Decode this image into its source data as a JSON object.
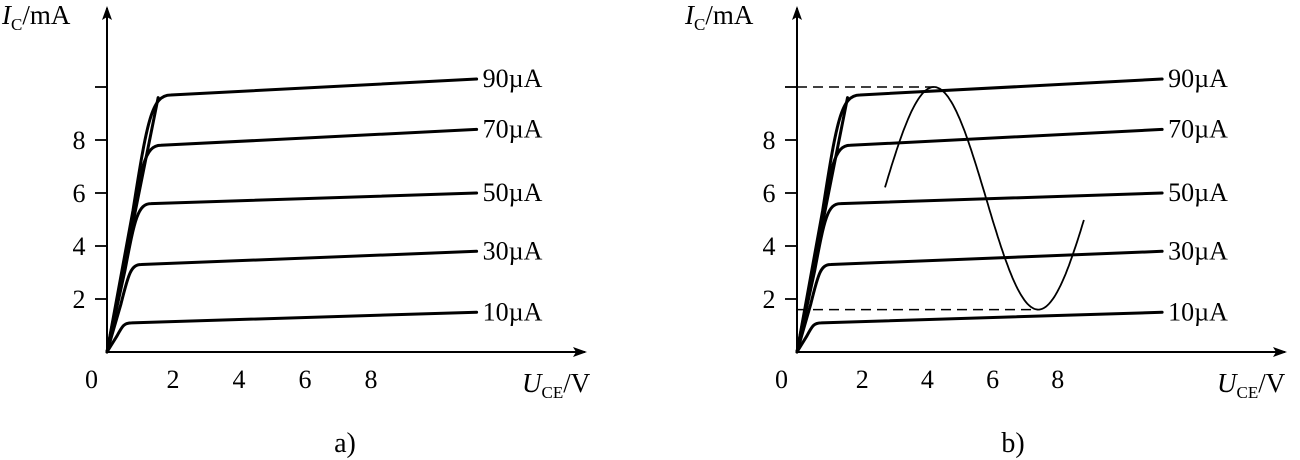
{
  "panels": [
    {
      "id": "a",
      "caption": "a)",
      "y_axis": {
        "symbol": "I",
        "subscript": "C",
        "unit": "/mA",
        "ticks": [
          {
            "value": 2,
            "label": "2"
          },
          {
            "value": 4,
            "label": "4"
          },
          {
            "value": 6,
            "label": "6"
          },
          {
            "value": 8,
            "label": "8"
          }
        ]
      },
      "x_axis": {
        "symbol": "U",
        "subscript": "CE",
        "unit": "/V",
        "ticks": [
          {
            "value": 2,
            "label": "2"
          },
          {
            "value": 4,
            "label": "4"
          },
          {
            "value": 6,
            "label": "6"
          },
          {
            "value": 8,
            "label": "8"
          }
        ]
      },
      "origin_label": "0",
      "curves": [
        {
          "label": "10µA",
          "sat_y": 1.1,
          "end_y": 1.5
        },
        {
          "label": "30µA",
          "sat_y": 3.3,
          "end_y": 3.8
        },
        {
          "label": "50µA",
          "sat_y": 5.6,
          "end_y": 6.0
        },
        {
          "label": "70µA",
          "sat_y": 7.8,
          "end_y": 8.4
        },
        {
          "label": "90µA",
          "sat_y": 9.7,
          "end_y": 10.3
        }
      ]
    },
    {
      "id": "b",
      "caption": "b)",
      "y_axis": {
        "symbol": "I",
        "subscript": "C",
        "unit": "/mA",
        "ticks": [
          {
            "value": 2,
            "label": "2"
          },
          {
            "value": 4,
            "label": "4"
          },
          {
            "value": 6,
            "label": "6"
          },
          {
            "value": 8,
            "label": "8"
          }
        ]
      },
      "x_axis": {
        "symbol": "U",
        "subscript": "CE",
        "unit": "/V",
        "ticks": [
          {
            "value": 2,
            "label": "2"
          },
          {
            "value": 4,
            "label": "4"
          },
          {
            "value": 6,
            "label": "6"
          },
          {
            "value": 8,
            "label": "8"
          }
        ]
      },
      "origin_label": "0",
      "curves": [
        {
          "label": "10µA",
          "sat_y": 1.1,
          "end_y": 1.5
        },
        {
          "label": "30µA",
          "sat_y": 3.3,
          "end_y": 3.8
        },
        {
          "label": "50µA",
          "sat_y": 5.6,
          "end_y": 6.0
        },
        {
          "label": "70µA",
          "sat_y": 7.8,
          "end_y": 8.4
        },
        {
          "label": "90µA",
          "sat_y": 9.7,
          "end_y": 10.3
        }
      ],
      "sine_wave": {
        "x_start": 2.7,
        "peak_x": 4.2,
        "peak_y": 10.0,
        "trough_x": 7.4,
        "trough_y": 1.6,
        "x_end": 8.8,
        "end_y": 5.8
      },
      "dashed_levels": [
        10.0,
        1.6
      ]
    }
  ]
}
